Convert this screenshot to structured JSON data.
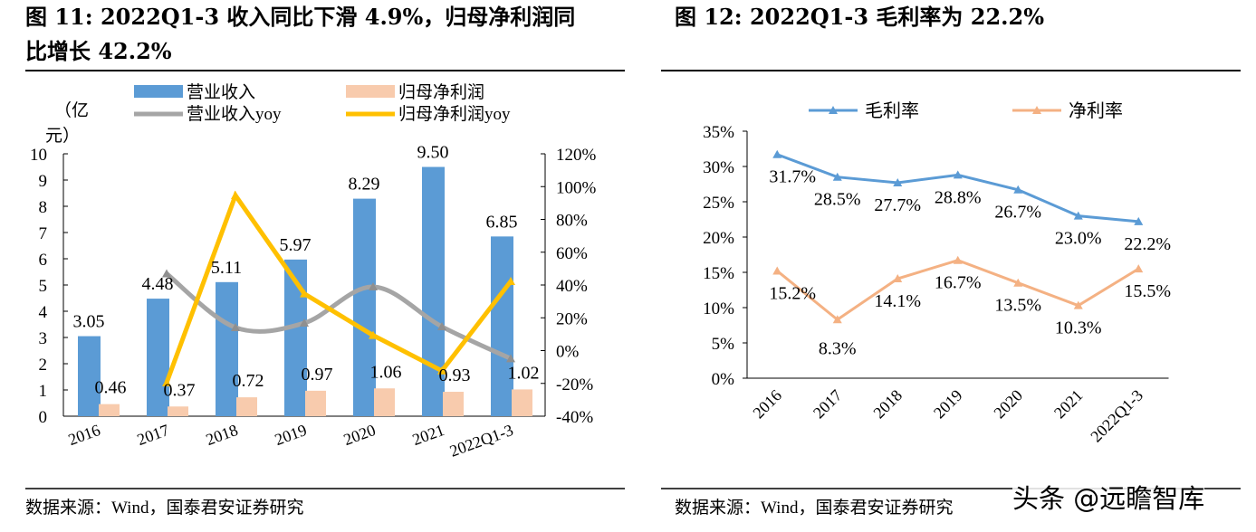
{
  "figures": {
    "left_title": "图 11: 2022Q1-3 收入同比下滑 4.9%，归母净利润同比增长 42.2%",
    "left_title_line1": "图 11: 2022Q1-3 收入同比下滑 4.9%，归母净利润同",
    "left_title_line2": "比增长 42.2%",
    "right_title": "图 12:  2022Q1-3 毛利率为 22.2%",
    "left_source": "数据来源：Wind，国泰君安证券研究",
    "right_source": "数据来源：Wind，国泰君安证券研究",
    "watermark": "头条 @远瞻智库"
  },
  "chart_data": [
    {
      "type": "bar",
      "ylabel": "（亿元）",
      "ylabel_line1": "（亿",
      "ylabel_line2": "元）",
      "categories": [
        "2016",
        "2017",
        "2018",
        "2019",
        "2020",
        "2021",
        "2022Q1-3"
      ],
      "ylim": [
        0,
        10
      ],
      "yticks": [
        "0",
        "1",
        "2",
        "3",
        "4",
        "5",
        "6",
        "7",
        "8",
        "9",
        "10"
      ],
      "y2lim": [
        -40,
        120
      ],
      "y2ticks": [
        "-40%",
        "-20%",
        "0%",
        "20%",
        "40%",
        "60%",
        "80%",
        "100%",
        "120%"
      ],
      "grid": false,
      "legend": "top",
      "series": [
        {
          "name": "营业收入",
          "kind": "bar",
          "axis": "left",
          "color": "#5B9BD5",
          "values": [
            3.05,
            4.48,
            5.11,
            5.97,
            8.29,
            9.5,
            6.85
          ],
          "labels": [
            "3.05",
            "4.48",
            "5.11",
            "5.97",
            "8.29",
            "9.50",
            "6.85"
          ]
        },
        {
          "name": "归母净利润",
          "kind": "bar",
          "axis": "left",
          "color": "#F8CBAD",
          "values": [
            0.46,
            0.37,
            0.72,
            0.97,
            1.06,
            0.93,
            1.02
          ],
          "labels": [
            "0.46",
            "0.37",
            "0.72",
            "0.97",
            "1.06",
            "0.93",
            "1.02"
          ]
        },
        {
          "name": "营业收入yoy",
          "kind": "line",
          "axis": "right",
          "color": "#A5A5A5",
          "smooth": true,
          "values": [
            null,
            46.9,
            14.1,
            16.8,
            38.9,
            14.6,
            -4.9
          ]
        },
        {
          "name": "归母净利润yoy",
          "kind": "line",
          "axis": "right",
          "color": "#FFC000",
          "smooth": false,
          "values": [
            null,
            -19.6,
            94.6,
            34.7,
            9.3,
            -12.3,
            42.2
          ]
        }
      ]
    },
    {
      "type": "line",
      "categories": [
        "2016",
        "2017",
        "2018",
        "2019",
        "2020",
        "2021",
        "2022Q1-3"
      ],
      "ylim": [
        0,
        35
      ],
      "yticks": [
        "0%",
        "5%",
        "10%",
        "15%",
        "20%",
        "25%",
        "30%",
        "35%"
      ],
      "grid": false,
      "legend": "top",
      "series": [
        {
          "name": "毛利率",
          "color": "#5B9BD5",
          "values": [
            31.7,
            28.5,
            27.7,
            28.8,
            26.7,
            23.0,
            22.2
          ],
          "labels": [
            "31.7%",
            "28.5%",
            "27.7%",
            "28.8%",
            "26.7%",
            "23.0%",
            "22.2%"
          ]
        },
        {
          "name": "净利率",
          "color": "#F4B183",
          "values": [
            15.2,
            8.3,
            14.1,
            16.7,
            13.5,
            10.3,
            15.5
          ],
          "labels": [
            "15.2%",
            "8.3%",
            "14.1%",
            "16.7%",
            "13.5%",
            "10.3%",
            "15.5%"
          ]
        }
      ]
    }
  ]
}
